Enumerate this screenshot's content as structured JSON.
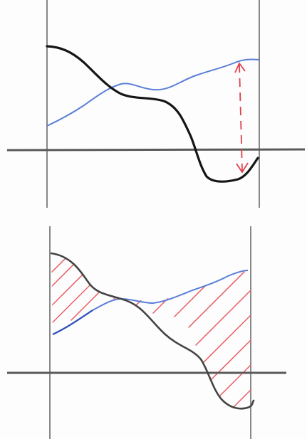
{
  "colors": {
    "paper": "#fdfdfd",
    "pencil": "#6b6b6b",
    "black_curve": "#151515",
    "grey_curve": "#444444",
    "blue_curve": "#5a7fd8",
    "blue_curve_dark": "#2d4fb8",
    "red_marker": "#e0404a",
    "hatch": "#e85a62"
  },
  "panels": [
    {
      "id": "top",
      "elements": [
        "horizontal-axis",
        "left-vertical-line",
        "right-vertical-line",
        "black-curve",
        "blue-curve",
        "red-double-arrow"
      ]
    },
    {
      "id": "bottom",
      "elements": [
        "horizontal-axis",
        "left-vertical-line",
        "right-vertical-line",
        "grey-curve",
        "blue-curve",
        "red-hatched-area"
      ]
    }
  ]
}
